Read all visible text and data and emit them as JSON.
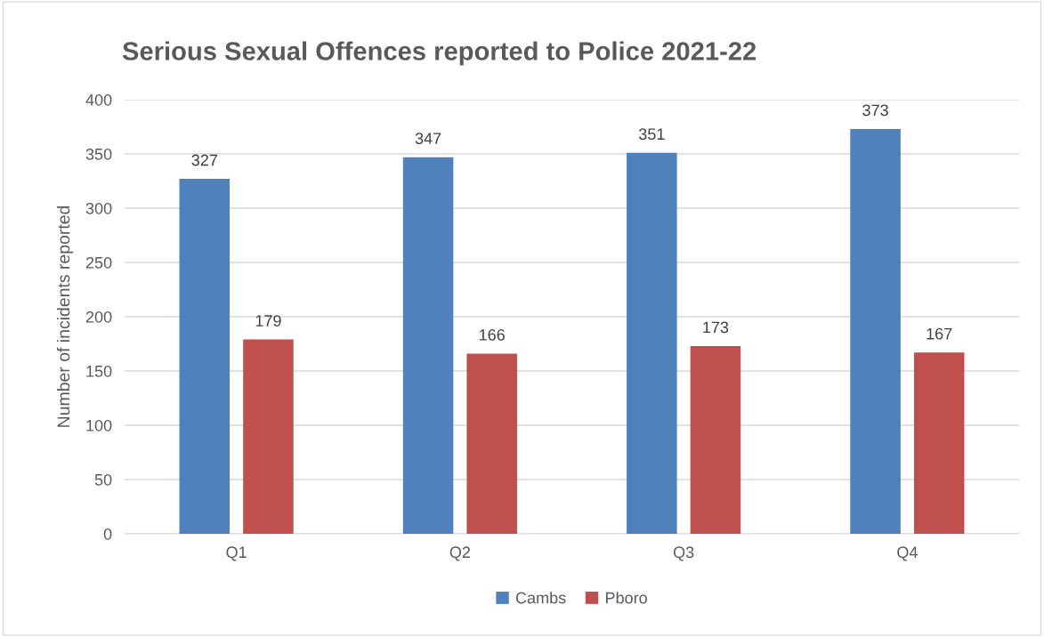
{
  "chart_data": {
    "type": "bar",
    "title": "Serious Sexual Offences reported to Police 2021-22",
    "ylabel": "Number of incidents reported",
    "categories": [
      "Q1",
      "Q2",
      "Q3",
      "Q4"
    ],
    "series": [
      {
        "name": "Cambs",
        "color": "#4f81bd",
        "values": [
          327,
          347,
          351,
          373
        ]
      },
      {
        "name": "Pboro",
        "color": "#c0504d",
        "values": [
          179,
          166,
          173,
          167
        ]
      }
    ],
    "ylim": [
      0,
      400
    ],
    "yticks": [
      0,
      50,
      100,
      150,
      200,
      250,
      300,
      350,
      400
    ],
    "grid": "y",
    "legend": "bottom",
    "data_labels": true
  }
}
